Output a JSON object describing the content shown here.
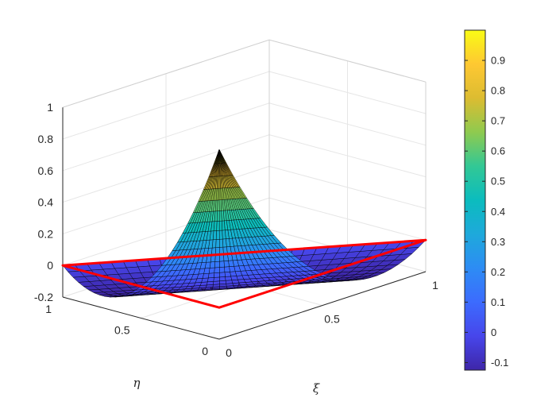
{
  "chart_data": {
    "type": "surface",
    "title": "",
    "xlabel": "ξ",
    "ylabel": "η",
    "zlabel": "",
    "function": "N(ξ,η) = (1-ξ-η)(1-2ξ-2η) over the reference triangle ξ≥0, η≥0, ξ+η≤1",
    "xlim": [
      0,
      1
    ],
    "ylim": [
      0,
      1
    ],
    "zlim": [
      -0.2,
      1
    ],
    "x_ticks": [
      0,
      0.5,
      1
    ],
    "y_ticks": [
      0,
      0.5,
      1
    ],
    "z_ticks": [
      -0.2,
      0,
      0.2,
      0.4,
      0.6,
      0.8,
      1
    ],
    "x_tick_labels": [
      "0",
      "0.5",
      "1"
    ],
    "y_tick_labels": [
      "0",
      "0.5",
      "1"
    ],
    "z_tick_labels": [
      "-0.2",
      "0",
      "0.2",
      "0.4",
      "0.6",
      "0.8",
      "1"
    ],
    "samples": {
      "at_xi0_eta0": 1,
      "at_xi1_eta0": 0,
      "at_xi0_eta1": 0,
      "min_value": -0.125,
      "min_at_xi_plus_eta": 0.75
    },
    "reference_triangle": {
      "color": "#ff0000",
      "vertices": [
        [
          0,
          0
        ],
        [
          1,
          0
        ],
        [
          0,
          1
        ]
      ],
      "z": 0
    },
    "grid": true,
    "colormap": "parula",
    "colorbar": {
      "location": "right",
      "range": [
        -0.125,
        1
      ],
      "ticks": [
        -0.1,
        0,
        0.1,
        0.2,
        0.3,
        0.4,
        0.5,
        0.6,
        0.7,
        0.8,
        0.9
      ],
      "tick_labels": [
        "-0.1",
        "0",
        "0.1",
        "0.2",
        "0.3",
        "0.4",
        "0.5",
        "0.6",
        "0.7",
        "0.8",
        "0.9"
      ]
    }
  }
}
